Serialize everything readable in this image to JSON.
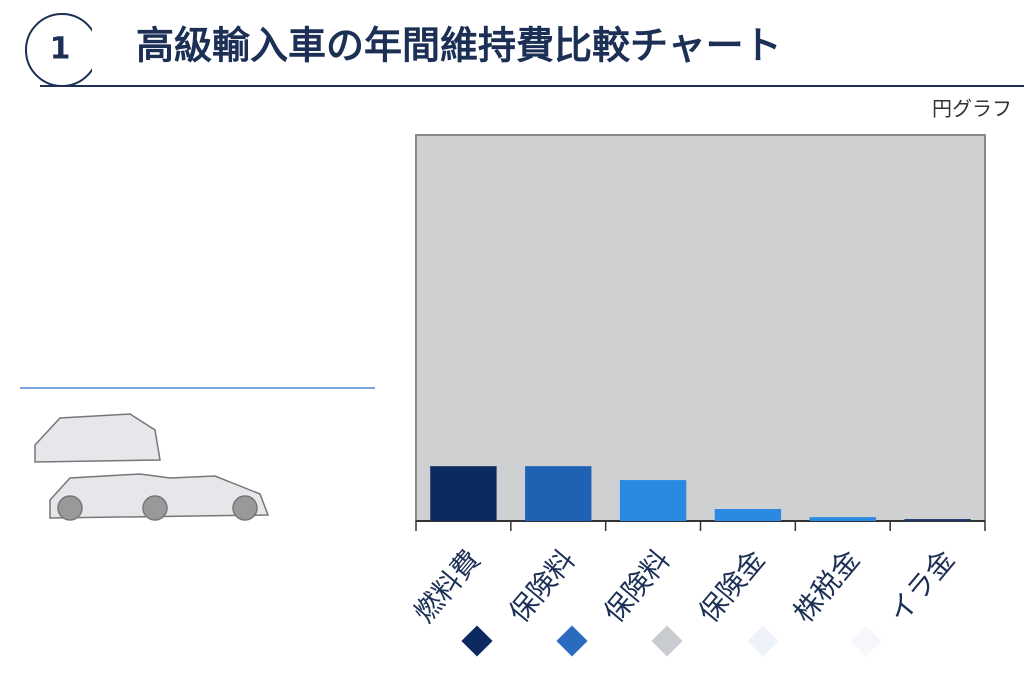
{
  "header": {
    "number": "1",
    "title": "高級輸入車の年間維持費比較チャート"
  },
  "chart_data": {
    "type": "bar",
    "subtitle": "円グラフ",
    "categories": [
      "燃料費",
      "保険料",
      "保険料",
      "保険金",
      "株税金",
      "イラ金"
    ],
    "values": [
      14.2,
      14.2,
      10.6,
      3.1,
      1.0,
      0.5
    ],
    "colors": [
      "#0c2a5f",
      "#1f62b4",
      "#2a8ae2",
      "#2a8ae2",
      "#2a8ae2",
      "#1c3a6e"
    ],
    "ylim": [
      0,
      100
    ]
  }
}
